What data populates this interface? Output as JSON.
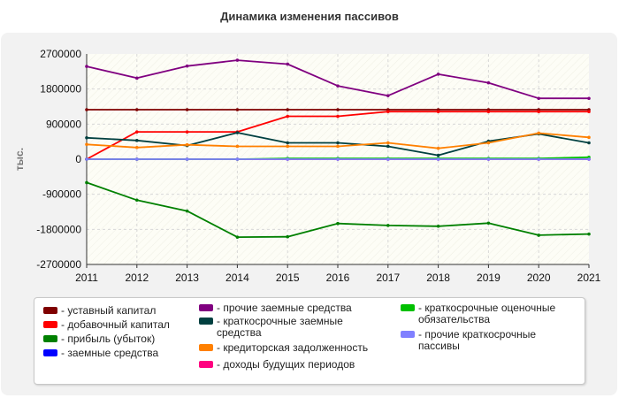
{
  "chart_data": {
    "type": "line",
    "title": "Динамика изменения пассивов",
    "ylabel": "тыс.",
    "xlabel": "",
    "categories": [
      "2011",
      "2012",
      "2013",
      "2014",
      "2015",
      "2016",
      "2017",
      "2018",
      "2019",
      "2020",
      "2021"
    ],
    "ylim": [
      -2700000,
      2700000
    ],
    "yticks": [
      2700000,
      1800000,
      900000,
      0,
      -900000,
      -1800000,
      -2700000
    ],
    "ytick_labels": [
      "2700000",
      "1800000",
      "900000",
      "0",
      "-900000",
      "-1800000",
      "-2700000"
    ],
    "grid": true,
    "series": [
      {
        "name": "- уставный капитал",
        "color": "#7f0000",
        "values": [
          1270000,
          1270000,
          1270000,
          1270000,
          1270000,
          1270000,
          1270000,
          1270000,
          1270000,
          1270000,
          1270000
        ]
      },
      {
        "name": "- добавочный капитал",
        "color": "#ff0000",
        "values": [
          0,
          700000,
          700000,
          700000,
          1100000,
          1100000,
          1220000,
          1220000,
          1220000,
          1220000,
          1220000
        ]
      },
      {
        "name": "- прибыль (убыток)",
        "color": "#008000",
        "values": [
          -600000,
          -1050000,
          -1330000,
          -2000000,
          -1990000,
          -1650000,
          -1700000,
          -1720000,
          -1640000,
          -1950000,
          -1920000
        ]
      },
      {
        "name": "- заемные средства",
        "color": "#0000ff",
        "values": [
          0,
          0,
          0,
          0,
          0,
          0,
          0,
          0,
          0,
          0,
          0
        ]
      },
      {
        "name": "- прочие заемные средства",
        "color": "#800080",
        "values": [
          2380000,
          2080000,
          2390000,
          2540000,
          2440000,
          1880000,
          1630000,
          2180000,
          1960000,
          1560000,
          1560000
        ]
      },
      {
        "name": "- краткосрочные заемные средства",
        "color": "#004040",
        "values": [
          550000,
          480000,
          350000,
          680000,
          420000,
          420000,
          330000,
          100000,
          460000,
          650000,
          420000
        ]
      },
      {
        "name": "- кредиторская задолженность",
        "color": "#ff8000",
        "values": [
          380000,
          300000,
          370000,
          330000,
          330000,
          330000,
          420000,
          280000,
          420000,
          670000,
          560000
        ]
      },
      {
        "name": "- доходы будущих периодов",
        "color": "#ff0080",
        "values": [
          0,
          0,
          0,
          0,
          0,
          0,
          0,
          0,
          0,
          0,
          0
        ]
      },
      {
        "name": "- краткосрочные оценочные обязательства",
        "color": "#00c000",
        "values": [
          0,
          0,
          0,
          0,
          20000,
          20000,
          20000,
          20000,
          20000,
          20000,
          50000
        ]
      },
      {
        "name": "- прочие краткосрочные пассивы",
        "color": "#8080ff",
        "values": [
          0,
          0,
          0,
          0,
          0,
          0,
          0,
          0,
          0,
          0,
          0
        ]
      }
    ],
    "legend_placement": "bottom"
  }
}
